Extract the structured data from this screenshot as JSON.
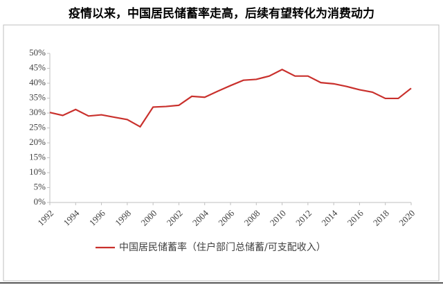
{
  "chart_data": {
    "type": "line",
    "title": "疫情以来，中国居民储蓄率走高，后续有望转化为消费动力",
    "x": [
      1992,
      1993,
      1994,
      1995,
      1996,
      1997,
      1998,
      1999,
      2000,
      2001,
      2002,
      2003,
      2004,
      2005,
      2006,
      2007,
      2008,
      2009,
      2010,
      2011,
      2012,
      2013,
      2014,
      2015,
      2016,
      2017,
      2018,
      2019,
      2020
    ],
    "series": [
      {
        "name": "中国居民储蓄率（住户部门总储蓄/可支配收入）",
        "color": "#c9302c",
        "values": [
          30.2,
          29.2,
          31.2,
          29.0,
          29.4,
          28.6,
          27.8,
          25.4,
          32.0,
          32.2,
          32.6,
          35.6,
          35.3,
          37.3,
          39.2,
          41.0,
          41.3,
          42.4,
          44.6,
          42.4,
          42.4,
          40.2,
          39.8,
          38.9,
          37.8,
          37.0,
          34.9,
          34.9,
          38.3
        ]
      }
    ],
    "xlim": [
      1992,
      2020
    ],
    "xticks": [
      1992,
      1994,
      1996,
      1998,
      2000,
      2002,
      2004,
      2006,
      2008,
      2010,
      2012,
      2014,
      2016,
      2018,
      2020
    ],
    "ylim": [
      0,
      50
    ],
    "yticks": [
      {
        "value": 0,
        "label": "0%"
      },
      {
        "value": 5,
        "label": "5%"
      },
      {
        "value": 10,
        "label": "10%"
      },
      {
        "value": 15,
        "label": "15%"
      },
      {
        "value": 20,
        "label": "20%"
      },
      {
        "value": 25,
        "label": "25%"
      },
      {
        "value": 30,
        "label": "30%"
      },
      {
        "value": 35,
        "label": "35%"
      },
      {
        "value": 40,
        "label": "40%"
      },
      {
        "value": 45,
        "label": "45%"
      },
      {
        "value": 50,
        "label": "50%"
      }
    ],
    "grid": false
  }
}
